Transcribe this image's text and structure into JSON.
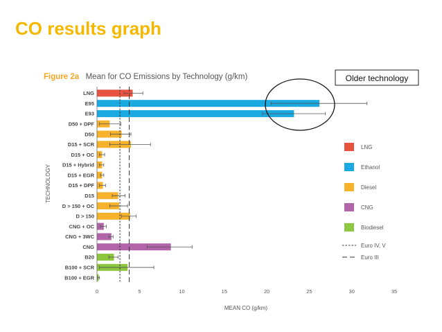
{
  "slide": {
    "title": "CO results graph"
  },
  "callout": {
    "label": "Older technology"
  },
  "chart_data": {
    "type": "bar",
    "orientation": "horizontal",
    "figure_label": "Figure 2a",
    "title": "Mean for CO Emissions by Technology (g/km)",
    "xlabel": "MEAN CO (g/km)",
    "ylabel": "TECHNOLOGY",
    "xlim": [
      0,
      35
    ],
    "xticks": [
      0,
      5,
      10,
      15,
      20,
      25,
      30,
      35
    ],
    "grid": false,
    "legend_position": "right",
    "legend": [
      {
        "name": "LNG",
        "color": "#e8533f"
      },
      {
        "name": "Ethanol",
        "color": "#1ba9e1"
      },
      {
        "name": "Diesel",
        "color": "#f7b22b"
      },
      {
        "name": "CNG",
        "color": "#b165a8"
      },
      {
        "name": "Biodiesel",
        "color": "#8dc63f"
      }
    ],
    "reference_lines": [
      {
        "name": "Euro IV, V",
        "value": 2.7,
        "style": "dashed-fine"
      },
      {
        "name": "Euro III",
        "value": 3.8,
        "style": "dashed-long"
      }
    ],
    "categories": [
      {
        "label": "LNG",
        "value": 4.2,
        "err": [
          3.2,
          5.4
        ],
        "group": "LNG"
      },
      {
        "label": "E95",
        "value": 26.2,
        "err": [
          20.5,
          31.8
        ],
        "group": "Ethanol"
      },
      {
        "label": "E93",
        "value": 23.2,
        "err": [
          19.5,
          26.9
        ],
        "group": "Ethanol"
      },
      {
        "label": "D50 + DPF",
        "value": 1.5,
        "err": [
          0.3,
          2.8
        ],
        "group": "Diesel"
      },
      {
        "label": "D50",
        "value": 2.9,
        "err": [
          1.6,
          4.0
        ],
        "group": "Diesel"
      },
      {
        "label": "D15 + SCR",
        "value": 4.0,
        "err": [
          1.5,
          6.3
        ],
        "group": "Diesel"
      },
      {
        "label": "D15 + OC",
        "value": 0.6,
        "err": [
          0.3,
          0.9
        ],
        "group": "Diesel"
      },
      {
        "label": "D15 + Hybrid",
        "value": 0.6,
        "err": [
          0.3,
          0.8
        ],
        "group": "Diesel"
      },
      {
        "label": "D15 + EGR",
        "value": 0.6,
        "err": [
          0.4,
          0.8
        ],
        "group": "Diesel"
      },
      {
        "label": "D15 + DPF",
        "value": 0.7,
        "err": [
          0.3,
          1.0
        ],
        "group": "Diesel"
      },
      {
        "label": "D15",
        "value": 2.5,
        "err": [
          1.8,
          3.3
        ],
        "group": "Diesel"
      },
      {
        "label": "D > 150 + OC",
        "value": 2.6,
        "err": [
          1.5,
          3.6
        ],
        "group": "Diesel"
      },
      {
        "label": "D > 150",
        "value": 3.9,
        "err": [
          2.9,
          4.6
        ],
        "group": "Diesel"
      },
      {
        "label": "CNG + OC",
        "value": 0.8,
        "err": [
          0.4,
          1.1
        ],
        "group": "CNG"
      },
      {
        "label": "CNG + 3WC",
        "value": 1.7,
        "err": [
          1.4,
          1.9
        ],
        "group": "CNG"
      },
      {
        "label": "CNG",
        "value": 8.7,
        "err": [
          5.9,
          11.2
        ],
        "group": "CNG"
      },
      {
        "label": "B20",
        "value": 2.0,
        "err": [
          1.4,
          2.5
        ],
        "group": "Biodiesel"
      },
      {
        "label": "B100 + SCR",
        "value": 3.6,
        "err": [
          0.3,
          6.7
        ],
        "group": "Biodiesel"
      },
      {
        "label": "B100 + EGR",
        "value": 0.2,
        "err": [
          0.1,
          0.3
        ],
        "group": "Biodiesel"
      }
    ]
  }
}
